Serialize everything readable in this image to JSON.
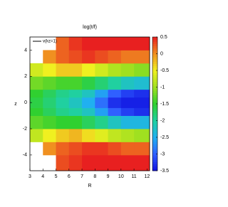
{
  "chart_data": {
    "type": "heatmap",
    "title": "log(t/f)",
    "annotation": "v(kz=1)",
    "xlabel": "R",
    "ylabel": "z",
    "x_edges": [
      3,
      4,
      5,
      6,
      7,
      8,
      9,
      10,
      11,
      12.2
    ],
    "y_edges": [
      -5.2,
      -4,
      -3,
      -2,
      -1,
      -0.4,
      0.4,
      1,
      2,
      3,
      4,
      5
    ],
    "z": [
      [
        null,
        null,
        0.3,
        0.4,
        0.5,
        0.5,
        0.5,
        0.5,
        0.5
      ],
      [
        null,
        0,
        0.2,
        0.3,
        0.4,
        0.4,
        0.3,
        0.2,
        0.2
      ],
      [
        -0.8,
        -0.5,
        -0.3,
        -0.2,
        -0.4,
        -0.6,
        -0.8,
        -0.9,
        -1
      ],
      [
        -1.3,
        -1.4,
        -1.5,
        -1.5,
        -1.7,
        -1.9,
        -2.2,
        -2.4,
        -2.4
      ],
      [
        -1.5,
        -1.7,
        -1.9,
        -2,
        -2.2,
        -2.6,
        -3,
        -3.2,
        -3.3
      ],
      [
        -1.6,
        -1.8,
        -2,
        -2.2,
        -2.5,
        -2.9,
        -3.3,
        -3.4,
        -3.4
      ],
      [
        -1.5,
        -1.7,
        -1.9,
        -2,
        -2.2,
        -2.6,
        -3,
        -3.2,
        -3.3
      ],
      [
        -1.2,
        -1.3,
        -1.4,
        -1.4,
        -1.6,
        -1.8,
        -2,
        -2.2,
        -2.3
      ],
      [
        -0.7,
        -0.5,
        -0.3,
        -0.3,
        -0.5,
        -0.7,
        -0.9,
        -1,
        -1.1
      ],
      [
        null,
        0,
        0.2,
        0.3,
        0.4,
        0.3,
        0.2,
        0.1,
        0.1
      ],
      [
        null,
        null,
        0.2,
        0.4,
        0.5,
        0.5,
        0.5,
        0.5,
        0.5
      ]
    ],
    "xlim": [
      3,
      12.2
    ],
    "ylim": [
      -5.2,
      5
    ],
    "xticks": [
      3,
      4,
      5,
      6,
      7,
      8,
      9,
      10,
      11,
      12
    ],
    "yticks": [
      -4,
      -2,
      0,
      2,
      4
    ],
    "clim": [
      -3.5,
      0.5
    ],
    "cticks": [
      0.5,
      0,
      -0.5,
      -1,
      -1.5,
      -2,
      -2.5,
      -3,
      -3.5
    ],
    "colormap": [
      "#1010e0",
      "#3060ff",
      "#20b0f0",
      "#20d0a0",
      "#30d030",
      "#a0e020",
      "#f0f020",
      "#f09020",
      "#e82020"
    ]
  }
}
